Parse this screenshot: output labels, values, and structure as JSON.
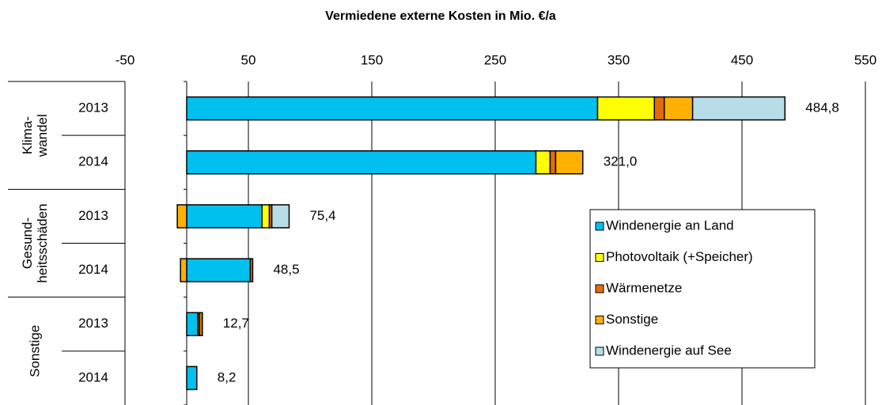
{
  "chart_data": {
    "type": "stacked-barh",
    "title": "Vermiedene externe Kosten in Mio. €/a",
    "groups": [
      {
        "label": [
          "Klima-",
          "wandel"
        ],
        "rows": [
          0,
          1
        ]
      },
      {
        "label": [
          "Gesund-",
          "heitsschäden"
        ],
        "rows": [
          2,
          3
        ]
      },
      {
        "label": [
          "Sonstige"
        ],
        "rows": [
          4,
          5
        ]
      }
    ],
    "categories": [
      "2013",
      "2014",
      "2013",
      "2014",
      "2013",
      "2014"
    ],
    "series": [
      {
        "name": "Windenergie an Land",
        "color": "#00c0f0",
        "values": [
          333,
          283,
          61,
          51.5,
          9,
          8.2
        ]
      },
      {
        "name": "Photovoltaik (+Speicher)",
        "color": "#ffff00",
        "values": [
          46,
          11.5,
          6,
          0,
          1.2,
          0
        ]
      },
      {
        "name": "Wärmenetze",
        "color": "#e36c0a",
        "values": [
          8,
          4.5,
          2,
          2,
          2.5,
          0
        ]
      },
      {
        "name": "Sonstige",
        "color": "#ffb000",
        "values": [
          23,
          22,
          -7.6,
          -5,
          0,
          0
        ]
      },
      {
        "name": "Windenergie auf See",
        "color": "#b7dde8",
        "values": [
          74.8,
          0,
          14,
          0,
          0,
          0
        ]
      }
    ],
    "totals": [
      484.8,
      321.0,
      75.4,
      48.5,
      12.7,
      8.2
    ],
    "total_labels": [
      "484,8",
      "321,0",
      "75,4",
      "48,5",
      "12,7",
      "8,2"
    ],
    "xlim": [
      -50,
      550
    ],
    "xticks": [
      -50,
      50,
      150,
      250,
      350,
      450,
      550
    ],
    "grid": true,
    "legend": "right"
  }
}
